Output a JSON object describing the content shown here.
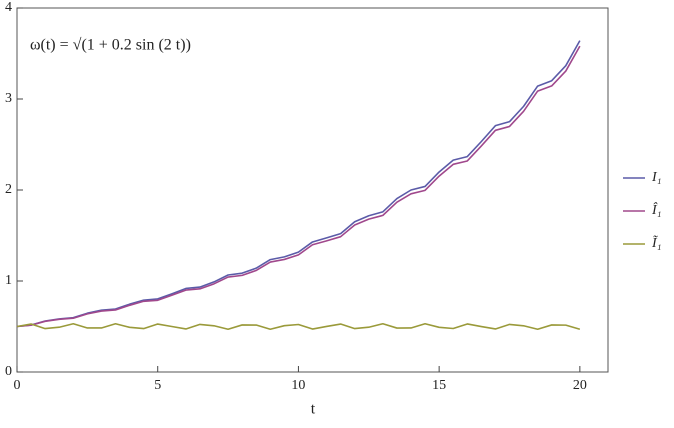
{
  "chart_data": {
    "type": "line",
    "annotation": "ω(t) = √(1 + 0.2 sin (2 t))",
    "x_label": "t",
    "x": [
      0,
      0.5,
      1,
      1.5,
      2,
      2.5,
      3,
      3.5,
      4,
      4.5,
      5,
      5.5,
      6,
      6.5,
      7,
      7.5,
      8,
      8.5,
      9,
      9.5,
      10,
      10.5,
      11,
      11.5,
      12,
      12.5,
      13,
      13.5,
      14,
      14.5,
      15,
      15.5,
      16,
      16.5,
      17,
      17.5,
      18,
      18.5,
      19,
      19.5,
      20
    ],
    "series": [
      {
        "name": "I₁",
        "color": "#5b5ba8",
        "values": [
          0.5,
          0.516,
          0.56,
          0.583,
          0.597,
          0.646,
          0.679,
          0.692,
          0.745,
          0.79,
          0.803,
          0.859,
          0.918,
          0.933,
          0.99,
          1.066,
          1.086,
          1.141,
          1.235,
          1.265,
          1.317,
          1.429,
          1.474,
          1.521,
          1.651,
          1.717,
          1.76,
          1.906,
          2.0,
          2.039,
          2.198,
          2.328,
          2.367,
          2.533,
          2.707,
          2.751,
          2.919,
          3.142,
          3.201,
          3.366,
          3.641
        ]
      },
      {
        "name": "Î₁",
        "color": "#a0488c",
        "values": [
          0.5,
          0.514,
          0.557,
          0.579,
          0.591,
          0.639,
          0.67,
          0.682,
          0.733,
          0.777,
          0.788,
          0.843,
          0.9,
          0.914,
          0.969,
          1.043,
          1.062,
          1.116,
          1.208,
          1.237,
          1.287,
          1.398,
          1.441,
          1.487,
          1.615,
          1.68,
          1.721,
          1.866,
          1.958,
          1.996,
          2.153,
          2.282,
          2.319,
          2.484,
          2.656,
          2.698,
          2.865,
          3.087,
          3.144,
          3.307,
          3.581
        ]
      },
      {
        "name": "Ĩ₁",
        "color": "#9a9a3a",
        "values": [
          0.5,
          0.527,
          0.477,
          0.492,
          0.53,
          0.484,
          0.484,
          0.53,
          0.491,
          0.477,
          0.527,
          0.5,
          0.473,
          0.523,
          0.508,
          0.47,
          0.517,
          0.516,
          0.47,
          0.509,
          0.522,
          0.472,
          0.501,
          0.527,
          0.477,
          0.492,
          0.53,
          0.483,
          0.484,
          0.53,
          0.491,
          0.478,
          0.528,
          0.499,
          0.473,
          0.523,
          0.508,
          0.47,
          0.517,
          0.515,
          0.47
        ]
      }
    ],
    "xlim": [
      0,
      21
    ],
    "ylim": [
      0,
      4
    ],
    "xticks": [
      0,
      5,
      10,
      15,
      20
    ],
    "yticks": [
      0,
      1,
      2,
      3,
      4
    ],
    "legend": "right"
  }
}
